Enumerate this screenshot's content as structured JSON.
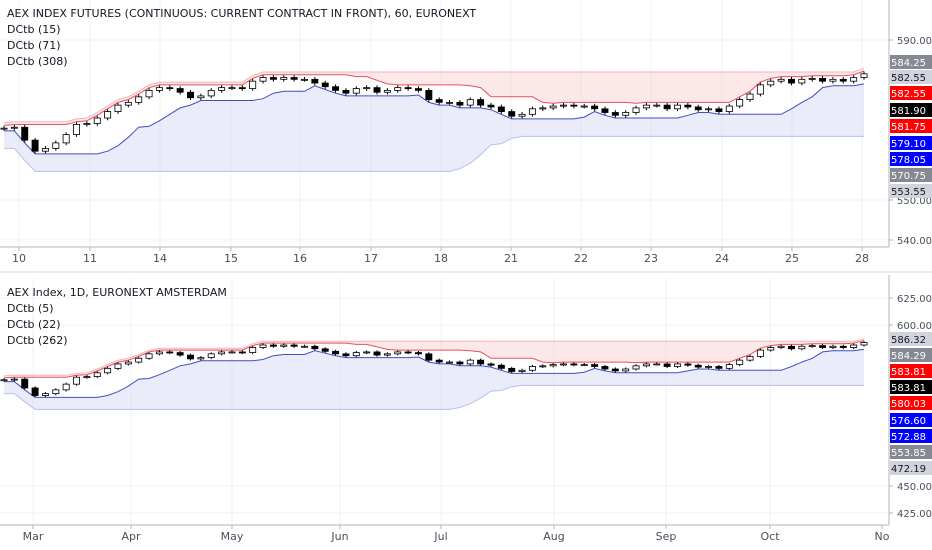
{
  "colors": {
    "background": "#ffffff",
    "grid": "#eef0f3",
    "axis_text": "#4a4f5c",
    "upper_band": "#e8505b",
    "lower_band": "#3f4fc4",
    "band_fill_upper": "#f9d6d6",
    "band_fill_lower": "#d9dcf4",
    "candle": "#000000",
    "price_label_bg": "#000000"
  },
  "chart_data": [
    {
      "type": "candlestick",
      "title": "AEX INDEX FUTURES (CONTINUOUS: CURRENT CONTRACT IN FRONT), 60, EURONEXT",
      "indicators": [
        "DCtb (15)",
        "DCtb (71)",
        "DCtb (308)"
      ],
      "x_tick_labels": [
        "10",
        "11",
        "14",
        "15",
        "16",
        "17",
        "18",
        "21",
        "22",
        "23",
        "24",
        "25",
        "28"
      ],
      "y_tick_labels": [
        "540.00",
        "550.00",
        "590.00"
      ],
      "ylim": [
        535,
        593
      ],
      "close_series": [
        581.5,
        581.6,
        580.2,
        579.0,
        579.3,
        579.9,
        580.8,
        581.9,
        582.0,
        582.6,
        583.3,
        584.0,
        584.3,
        584.9,
        585.6,
        585.9,
        585.8,
        585.4,
        584.8,
        585.0,
        585.6,
        585.9,
        585.9,
        585.8,
        586.6,
        587.0,
        586.8,
        587.0,
        586.8,
        586.8,
        586.4,
        586.0,
        585.6,
        585.3,
        585.8,
        585.9,
        585.4,
        585.6,
        585.9,
        585.8,
        585.6,
        584.6,
        584.3,
        584.3,
        584.0,
        584.6,
        584.0,
        583.8,
        583.3,
        582.8,
        583.0,
        583.6,
        583.7,
        583.9,
        584.0,
        583.9,
        583.9,
        583.6,
        583.2,
        582.9,
        583.2,
        583.7,
        584.0,
        584.0,
        583.6,
        584.0,
        583.8,
        583.5,
        583.6,
        583.3,
        583.9,
        584.6,
        585.2,
        586.2,
        586.6,
        586.8,
        586.4,
        586.8,
        586.9,
        586.6,
        586.8,
        586.6,
        587.0,
        587.4
      ],
      "price_labels": [
        {
          "value": "584.25",
          "style": "grey"
        },
        {
          "value": "582.55",
          "style": "light"
        },
        {
          "value": "582.55",
          "style": "red"
        },
        {
          "value": "581.90",
          "style": "black"
        },
        {
          "value": "581.75",
          "style": "red"
        },
        {
          "value": "579.10",
          "style": "blue"
        },
        {
          "value": "578.05",
          "style": "blue"
        },
        {
          "value": "570.75",
          "style": "grey"
        },
        {
          "value": "553.55",
          "style": "light"
        }
      ]
    },
    {
      "type": "candlestick",
      "title": "AEX Index, 1D, EURONEXT AMSTERDAM",
      "indicators": [
        "DCtb (5)",
        "DCtb (22)",
        "DCtb (262)"
      ],
      "x_tick_labels": [
        "Mar",
        "Apr",
        "May",
        "Jun",
        "Jul",
        "Aug",
        "Sep",
        "Oct",
        "No"
      ],
      "y_tick_labels": [
        "625.00",
        "600.00",
        "450.00",
        "425.00"
      ],
      "ylim": [
        418,
        632
      ],
      "close_series": [
        581.5,
        581.6,
        580.2,
        579.0,
        579.3,
        579.9,
        580.8,
        581.9,
        582.0,
        582.6,
        583.3,
        584.0,
        584.3,
        584.9,
        585.6,
        585.9,
        585.8,
        585.4,
        584.8,
        585.0,
        585.6,
        585.9,
        585.9,
        585.8,
        586.6,
        587.0,
        586.8,
        587.0,
        586.8,
        586.8,
        586.4,
        586.0,
        585.6,
        585.3,
        585.8,
        585.9,
        585.4,
        585.6,
        585.9,
        585.8,
        585.6,
        584.6,
        584.3,
        584.3,
        584.0,
        584.6,
        584.0,
        583.8,
        583.3,
        582.8,
        583.0,
        583.6,
        583.7,
        583.9,
        584.0,
        583.9,
        583.9,
        583.6,
        583.2,
        582.9,
        583.2,
        583.7,
        584.0,
        584.0,
        583.6,
        584.0,
        583.8,
        583.5,
        583.6,
        583.3,
        583.9,
        584.6,
        585.2,
        586.2,
        586.6,
        586.8,
        586.4,
        586.8,
        586.9,
        586.6,
        586.8,
        586.6,
        587.0,
        587.4
      ],
      "price_labels": [
        {
          "value": "586.32",
          "style": "light"
        },
        {
          "value": "584.29",
          "style": "grey"
        },
        {
          "value": "583.81",
          "style": "red"
        },
        {
          "value": "583.81",
          "style": "black"
        },
        {
          "value": "580.03",
          "style": "red"
        },
        {
          "value": "576.60",
          "style": "blue"
        },
        {
          "value": "572.88",
          "style": "blue"
        },
        {
          "value": "553.85",
          "style": "grey"
        },
        {
          "value": "472.19",
          "style": "light"
        }
      ]
    }
  ]
}
